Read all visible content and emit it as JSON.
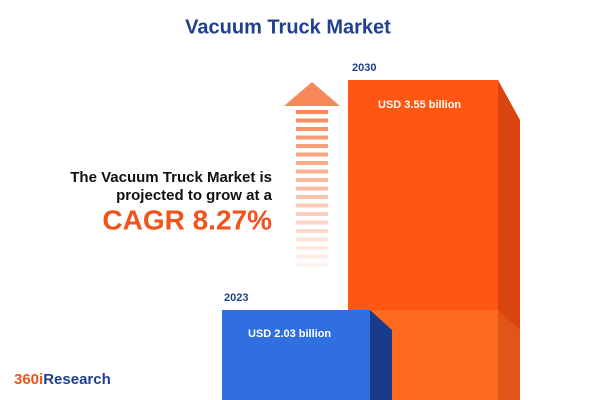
{
  "title": "Vacuum Truck Market",
  "headline": {
    "line1": "The Vacuum Truck Market is",
    "line2": "projected to grow at a",
    "cagr": "CAGR 8.27%"
  },
  "bars": [
    {
      "year": "2023",
      "label": "USD 2.03 billion"
    },
    {
      "year": "2030",
      "label": "USD 3.55 billion"
    }
  ],
  "logo": {
    "prefix": "360i",
    "suffix": "Research"
  }
}
